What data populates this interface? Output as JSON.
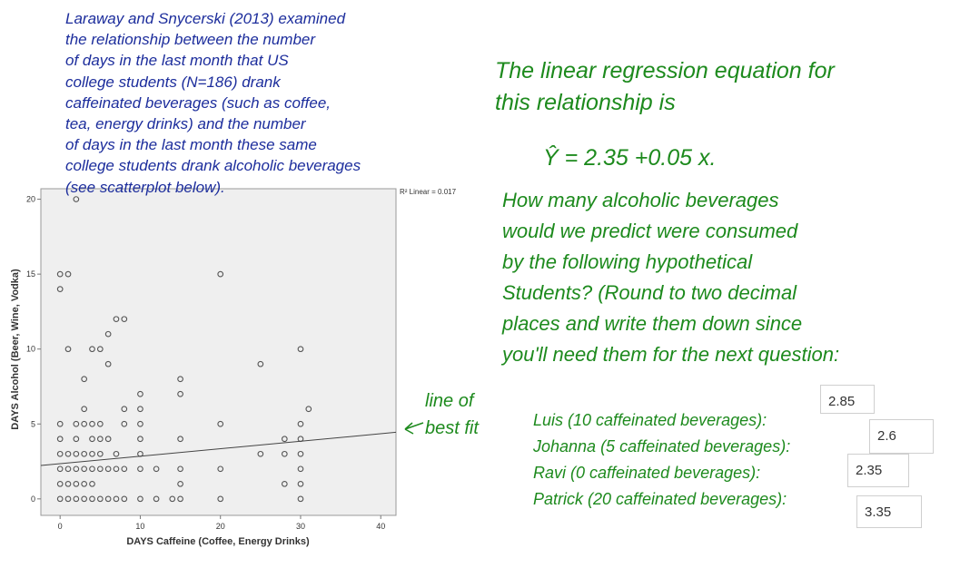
{
  "intro": [
    "Laraway and Snycerski (2013) examined",
    "the relationship between the number",
    "of days in the last month that US",
    "college students (N=186) drank",
    "caffeinated beverages (such as coffee,",
    "tea, energy drinks) and the number",
    "of days in the last month these same",
    "college students drank alcoholic beverages",
    "(see scatterplot below)."
  ],
  "regression_text": [
    "The linear regression equation for",
    "this relationship is"
  ],
  "equation": "Ŷ = 2.35 +0.05 x.",
  "prompt": [
    "How many alcoholic beverages",
    "would we predict were consumed",
    "by the following hypothetical",
    "Students? (Round to two decimal",
    "places and write them down since",
    "you'll need them for the next question:"
  ],
  "fit_annotation": [
    "line of",
    "best fit"
  ],
  "students": [
    {
      "label": "Luis (10 caffeinated beverages):",
      "answer": 2.85
    },
    {
      "label": "Johanna (5 caffeinated beverages):",
      "answer": 2.6
    },
    {
      "label": "Ravi (0 caffeinated beverages):",
      "answer": 2.35
    },
    {
      "label": "Patrick (20 caffeinated beverages):",
      "answer": 3.35
    }
  ],
  "chart_data": {
    "type": "scatter",
    "x_label": "DAYS Caffeine (Coffee, Energy Drinks)",
    "y_label": "DAYS Alcohol (Beer, Wine, Vodka)",
    "fit_label": "R² Linear = 0.017",
    "fit_line": {
      "intercept": 2.35,
      "slope": 0.05
    },
    "xlim": [
      -2.4,
      41.9
    ],
    "ylim": [
      -1.1,
      20.7
    ],
    "xticks": [
      0,
      10,
      20,
      30,
      40
    ],
    "yticks": [
      0,
      5,
      10,
      15,
      20
    ],
    "color": "#555555",
    "x": [
      0,
      1,
      2,
      3,
      4,
      5,
      6,
      7,
      8,
      10,
      12,
      14,
      15,
      20,
      30,
      0,
      1,
      2,
      3,
      4,
      15,
      28,
      30,
      0,
      1,
      2,
      3,
      4,
      5,
      6,
      7,
      8,
      10,
      12,
      15,
      20,
      30,
      0,
      1,
      2,
      3,
      4,
      5,
      7,
      10,
      25,
      28,
      30,
      0,
      2,
      4,
      5,
      6,
      10,
      15,
      28,
      30,
      0,
      2,
      3,
      4,
      5,
      8,
      10,
      20,
      30,
      3,
      8,
      10,
      31,
      10,
      15,
      3,
      15,
      6,
      25,
      1,
      4,
      5,
      30,
      6,
      7,
      8,
      0,
      0,
      1,
      20,
      2
    ],
    "values": [
      0,
      0,
      0,
      0,
      0,
      0,
      0,
      0,
      0,
      0,
      0,
      0,
      0,
      0,
      0,
      1,
      1,
      1,
      1,
      1,
      1,
      1,
      1,
      2,
      2,
      2,
      2,
      2,
      2,
      2,
      2,
      2,
      2,
      2,
      2,
      2,
      2,
      3,
      3,
      3,
      3,
      3,
      3,
      3,
      3,
      3,
      3,
      3,
      4,
      4,
      4,
      4,
      4,
      4,
      4,
      4,
      4,
      5,
      5,
      5,
      5,
      5,
      5,
      5,
      5,
      5,
      6,
      6,
      6,
      6,
      7,
      7,
      8,
      8,
      9,
      9,
      10,
      10,
      10,
      10,
      11,
      12,
      12,
      14,
      15,
      15,
      15,
      20
    ]
  }
}
